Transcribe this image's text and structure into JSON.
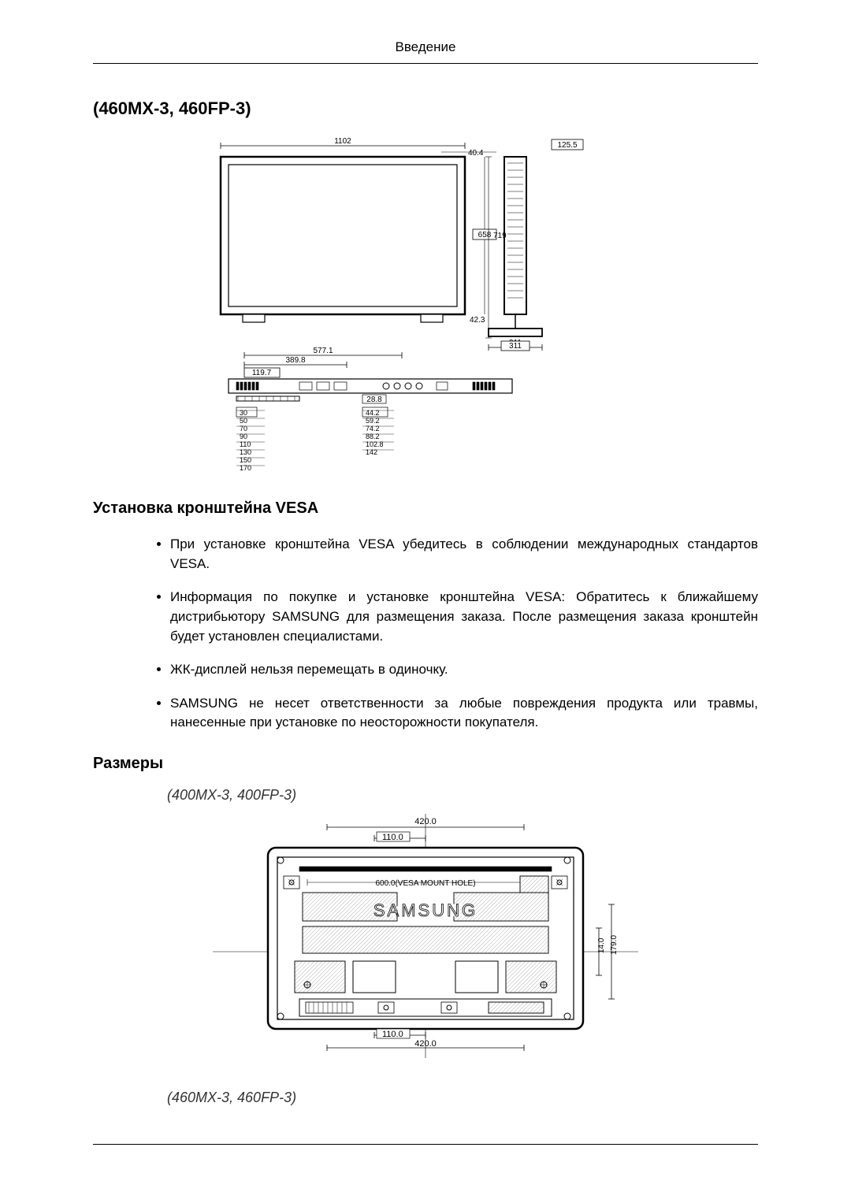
{
  "header_title": "Введение",
  "main_heading": "(460MX-3, 460FP-3)",
  "diagram1": {
    "front_width": "1102",
    "side_top": "125.5",
    "side_gap": "40.4",
    "screen_height": "658",
    "total_height": "719",
    "base_height": "42.3",
    "stand_width": "311",
    "bottom_w1": "577.1",
    "bottom_w2": "389.8",
    "bottom_w3": "119.7",
    "port_w": "28.8",
    "port_labels_left": [
      "30",
      "50",
      "70",
      "90",
      "110",
      "130",
      "150",
      "170"
    ],
    "port_labels_right": [
      "44.2",
      "59.2",
      "74.2",
      "88.2",
      "102.8",
      "142"
    ],
    "stroke": "#000000",
    "fill": "#ffffff",
    "text_size_small": 10,
    "text_size_med": 11
  },
  "section_vesa_heading": "Установка кронштейна VESA",
  "bullets": [
    "При установке кронштейна VESA убедитесь в соблюдении международных стандартов VESA.",
    "Информация по покупке и установке кронштейна VESA: Обратитесь к ближайшему дистрибьютору SAMSUNG для размещения заказа. После размещения заказа кронштейн будет установлен специалистами.",
    "ЖК-дисплей нельзя перемещать в одиночку.",
    "SAMSUNG не несет ответственности за любые повреждения продукта или травмы, нанесенные при установке по неосторожности покупателя."
  ],
  "section_dims_heading": "Размеры",
  "model_a": "(400MX-3, 400FP-3)",
  "model_b": "(460MX-3, 460FP-3)",
  "diagram2": {
    "top_width": "420.0",
    "top_inner": "110.0",
    "vesa_text": "600.0(VESA MOUNT HOLE)",
    "brand": "SAMSUNG",
    "bottom_inner": "110.0",
    "bottom_width": "420.0",
    "right_a": "14.0",
    "right_b": "179.0",
    "stroke": "#000000",
    "fill": "#ffffff",
    "hatch": "#bdbdbd",
    "text_size": 11,
    "brand_size": 22
  }
}
